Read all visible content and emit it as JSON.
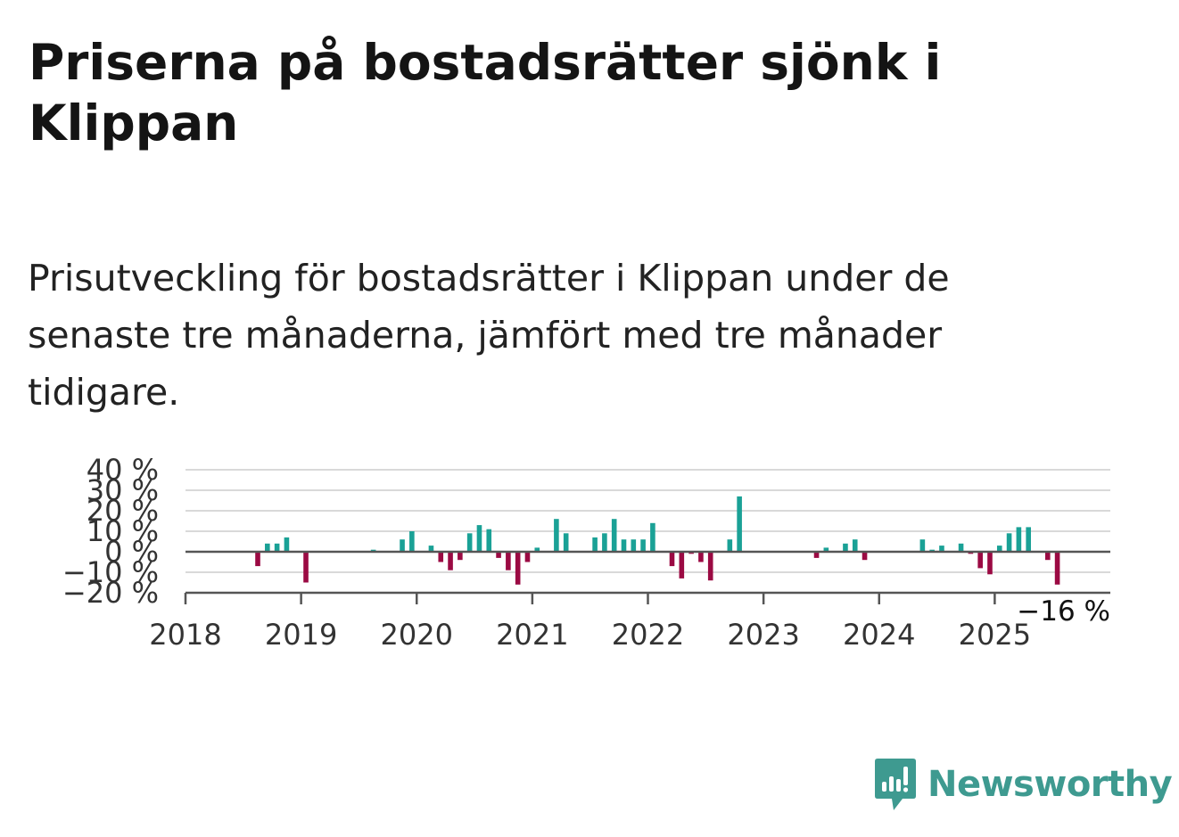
{
  "title": "Priserna på bostadsrätter sjönk i Klippan",
  "subtitle": "Prisutveckling för bostadsrätter i Klippan under de senaste tre månaderna, jämfört med tre månader tidigare.",
  "brand": {
    "name": "Newsworthy",
    "icon": "newsworthy-logo-icon",
    "color": "#3e9a90"
  },
  "colors": {
    "positive": "#1aa196",
    "negative": "#9b0a43",
    "grid": "#d9d9d9",
    "axis": "#555555"
  },
  "chart_data": {
    "type": "bar",
    "title": "",
    "xlabel": "",
    "ylabel": "",
    "ylim": [
      -20,
      40
    ],
    "yticks": [
      40,
      30,
      20,
      10,
      0,
      -10,
      -20
    ],
    "ytick_labels": [
      "40 %",
      "30 %",
      "20 %",
      "10 %",
      "0 %",
      "−10 %",
      "−20 %"
    ],
    "xlim": [
      "2018-01",
      "2025-12"
    ],
    "xtick_labels": [
      "2018",
      "2019",
      "2020",
      "2021",
      "2022",
      "2023",
      "2024",
      "2025"
    ],
    "grid": true,
    "end_label": "−16 %",
    "series": [
      {
        "x": [
          "2018-08",
          "2018-09",
          "2018-10",
          "2018-11",
          "2019-01",
          "2019-08",
          "2019-11",
          "2019-12",
          "2020-02",
          "2020-03",
          "2020-04",
          "2020-05",
          "2020-06",
          "2020-07",
          "2020-08",
          "2020-09",
          "2020-10",
          "2020-11",
          "2020-12",
          "2021-01",
          "2021-03",
          "2021-04",
          "2021-07",
          "2021-08",
          "2021-09",
          "2021-10",
          "2021-11",
          "2021-12",
          "2022-01",
          "2022-03",
          "2022-04",
          "2022-05",
          "2022-06",
          "2022-07",
          "2022-09",
          "2022-10",
          "2023-06",
          "2023-07",
          "2023-09",
          "2023-10",
          "2023-11",
          "2024-05",
          "2024-06",
          "2024-07",
          "2024-09",
          "2024-10",
          "2024-11",
          "2024-12",
          "2025-01",
          "2025-02",
          "2025-03",
          "2025-04",
          "2025-06",
          "2025-07"
        ],
        "values": [
          -7,
          4,
          4,
          7,
          -15,
          1,
          6,
          10,
          3,
          -5,
          -9,
          -4,
          9,
          13,
          11,
          -3,
          -9,
          -16,
          -5,
          2,
          16,
          9,
          7,
          9,
          16,
          6,
          6,
          6,
          14,
          -7,
          -13,
          -1,
          -5,
          -14,
          6,
          27,
          -3,
          2,
          4,
          6,
          -4,
          6,
          1,
          3,
          4,
          -1,
          -8,
          -11,
          3,
          9,
          12,
          12,
          -4,
          -16
        ]
      }
    ]
  }
}
